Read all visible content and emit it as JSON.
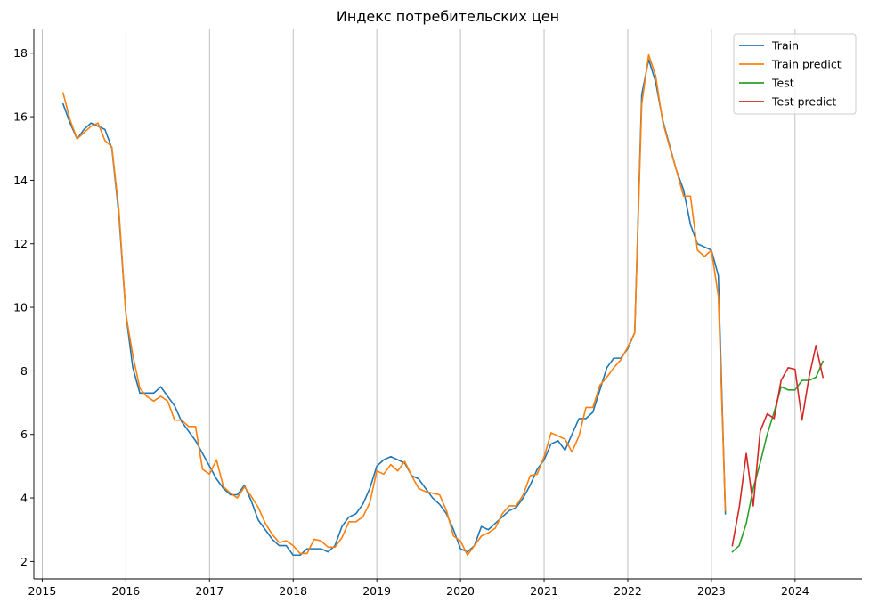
{
  "chart_data": {
    "type": "line",
    "title": "Индекс потребительских цен",
    "xlabel": "",
    "ylabel": "",
    "xlim": [
      2014.9,
      2024.8
    ],
    "ylim": [
      1.45,
      18.75
    ],
    "x_ticks": [
      2015,
      2016,
      2017,
      2018,
      2019,
      2020,
      2021,
      2022,
      2023,
      2024
    ],
    "y_ticks": [
      2,
      4,
      6,
      8,
      10,
      12,
      14,
      16,
      18
    ],
    "grid": {
      "vertical": true,
      "horizontal": false
    },
    "legend_position": "top-right",
    "series": [
      {
        "name": "Train",
        "color": "#1f77b4",
        "x": [
          2015.25,
          2015.333,
          2015.417,
          2015.5,
          2015.583,
          2015.667,
          2015.75,
          2015.833,
          2015.917,
          2016.0,
          2016.083,
          2016.167,
          2016.25,
          2016.333,
          2016.417,
          2016.5,
          2016.583,
          2016.667,
          2016.75,
          2016.833,
          2016.917,
          2017.0,
          2017.083,
          2017.167,
          2017.25,
          2017.333,
          2017.417,
          2017.5,
          2017.583,
          2017.667,
          2017.75,
          2017.833,
          2017.917,
          2018.0,
          2018.083,
          2018.167,
          2018.25,
          2018.333,
          2018.417,
          2018.5,
          2018.583,
          2018.667,
          2018.75,
          2018.833,
          2018.917,
          2019.0,
          2019.083,
          2019.167,
          2019.25,
          2019.333,
          2019.417,
          2019.5,
          2019.583,
          2019.667,
          2019.75,
          2019.833,
          2019.917,
          2020.0,
          2020.083,
          2020.167,
          2020.25,
          2020.333,
          2020.417,
          2020.5,
          2020.583,
          2020.667,
          2020.75,
          2020.833,
          2020.917,
          2021.0,
          2021.083,
          2021.167,
          2021.25,
          2021.333,
          2021.417,
          2021.5,
          2021.583,
          2021.667,
          2021.75,
          2021.833,
          2021.917,
          2022.0,
          2022.083,
          2022.167,
          2022.25,
          2022.333,
          2022.417,
          2022.5,
          2022.583,
          2022.667,
          2022.75,
          2022.833,
          2022.917,
          2023.0,
          2023.083,
          2023.167
        ],
        "values": [
          16.4,
          15.8,
          15.3,
          15.6,
          15.8,
          15.7,
          15.6,
          15.0,
          12.9,
          9.8,
          8.1,
          7.3,
          7.3,
          7.3,
          7.5,
          7.2,
          6.9,
          6.4,
          6.1,
          5.8,
          5.4,
          5.0,
          4.6,
          4.3,
          4.1,
          4.1,
          4.4,
          3.9,
          3.3,
          3.0,
          2.7,
          2.5,
          2.5,
          2.2,
          2.2,
          2.4,
          2.4,
          2.4,
          2.3,
          2.5,
          3.1,
          3.4,
          3.5,
          3.8,
          4.3,
          5.0,
          5.2,
          5.3,
          5.2,
          5.1,
          4.7,
          4.6,
          4.3,
          4.0,
          3.8,
          3.5,
          3.0,
          2.4,
          2.3,
          2.5,
          3.1,
          3.0,
          3.2,
          3.4,
          3.6,
          3.7,
          4.0,
          4.4,
          4.9,
          5.2,
          5.7,
          5.8,
          5.5,
          6.0,
          6.5,
          6.5,
          6.7,
          7.4,
          8.1,
          8.4,
          8.4,
          8.7,
          9.2,
          16.7,
          17.8,
          17.1,
          15.9,
          15.1,
          14.3,
          13.7,
          12.6,
          12.0,
          11.9,
          11.8,
          11.0,
          3.5
        ]
      },
      {
        "name": "Train predict",
        "color": "#ff7f0e",
        "x": [
          2015.25,
          2015.333,
          2015.417,
          2015.5,
          2015.583,
          2015.667,
          2015.75,
          2015.833,
          2015.917,
          2016.0,
          2016.083,
          2016.167,
          2016.25,
          2016.333,
          2016.417,
          2016.5,
          2016.583,
          2016.667,
          2016.75,
          2016.833,
          2016.917,
          2017.0,
          2017.083,
          2017.167,
          2017.25,
          2017.333,
          2017.417,
          2017.5,
          2017.583,
          2017.667,
          2017.75,
          2017.833,
          2017.917,
          2018.0,
          2018.083,
          2018.167,
          2018.25,
          2018.333,
          2018.417,
          2018.5,
          2018.583,
          2018.667,
          2018.75,
          2018.833,
          2018.917,
          2019.0,
          2019.083,
          2019.167,
          2019.25,
          2019.333,
          2019.417,
          2019.5,
          2019.583,
          2019.667,
          2019.75,
          2019.833,
          2019.917,
          2020.0,
          2020.083,
          2020.167,
          2020.25,
          2020.333,
          2020.417,
          2020.5,
          2020.583,
          2020.667,
          2020.75,
          2020.833,
          2020.917,
          2021.0,
          2021.083,
          2021.167,
          2021.25,
          2021.333,
          2021.417,
          2021.5,
          2021.583,
          2021.667,
          2021.75,
          2021.833,
          2021.917,
          2022.0,
          2022.083,
          2022.167,
          2022.25,
          2022.333,
          2022.417,
          2022.5,
          2022.583,
          2022.667,
          2022.75,
          2022.833,
          2022.917,
          2023.0,
          2023.083,
          2023.167
        ],
        "values": [
          16.75,
          15.9,
          15.3,
          15.5,
          15.7,
          15.8,
          15.25,
          15.05,
          13.05,
          9.8,
          8.5,
          7.45,
          7.2,
          7.05,
          7.2,
          7.05,
          6.45,
          6.45,
          6.25,
          6.25,
          4.9,
          4.75,
          5.2,
          4.35,
          4.15,
          4.0,
          4.35,
          4.05,
          3.7,
          3.2,
          2.85,
          2.6,
          2.65,
          2.5,
          2.25,
          2.25,
          2.7,
          2.65,
          2.45,
          2.45,
          2.75,
          3.25,
          3.25,
          3.4,
          3.85,
          4.85,
          4.75,
          5.05,
          4.85,
          5.15,
          4.7,
          4.3,
          4.2,
          4.15,
          4.1,
          3.6,
          2.8,
          2.65,
          2.2,
          2.5,
          2.8,
          2.9,
          3.05,
          3.5,
          3.75,
          3.75,
          4.1,
          4.7,
          4.75,
          5.3,
          6.05,
          5.95,
          5.85,
          5.45,
          5.95,
          6.85,
          6.85,
          7.55,
          7.8,
          8.1,
          8.35,
          8.75,
          9.2,
          16.4,
          17.95,
          17.3,
          15.85,
          15.05,
          14.3,
          13.5,
          13.5,
          11.8,
          11.6,
          11.8,
          10.35,
          3.6
        ]
      },
      {
        "name": "Test",
        "color": "#2ca02c",
        "x": [
          2023.25,
          2023.333,
          2023.417,
          2023.5,
          2023.583,
          2023.667,
          2023.75,
          2023.833,
          2023.917,
          2024.0,
          2024.083,
          2024.167,
          2024.25,
          2024.333
        ],
        "values": [
          2.3,
          2.5,
          3.2,
          4.3,
          5.1,
          6.0,
          6.7,
          7.5,
          7.4,
          7.4,
          7.7,
          7.7,
          7.8,
          8.3
        ]
      },
      {
        "name": "Test predict",
        "color": "#d62728",
        "x": [
          2023.25,
          2023.333,
          2023.417,
          2023.5,
          2023.583,
          2023.667,
          2023.75,
          2023.833,
          2023.917,
          2024.0,
          2024.083,
          2024.167,
          2024.25,
          2024.333
        ],
        "values": [
          2.5,
          3.7,
          5.4,
          3.75,
          6.1,
          6.65,
          6.5,
          7.7,
          8.1,
          8.05,
          6.45,
          7.8,
          8.8,
          7.8
        ]
      }
    ]
  }
}
